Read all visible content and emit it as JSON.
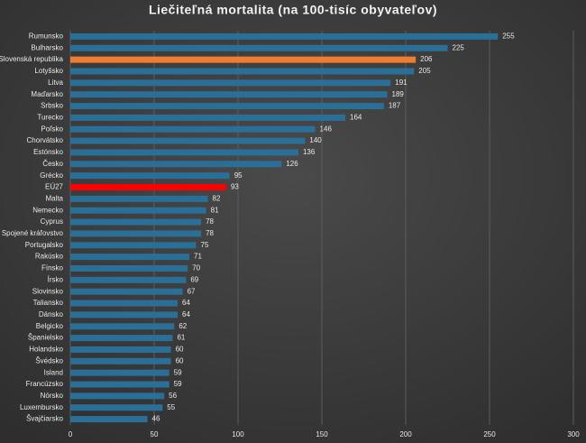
{
  "chart_data": {
    "type": "bar",
    "orientation": "horizontal",
    "title": "Liečiteľná mortalita (na 100-tisíc obyvateľov)",
    "categories": [
      "Rumunsko",
      "Bulharsko",
      "Slovenská republika",
      "Lotyšsko",
      "Litva",
      "Maďarsko",
      "Srbsko",
      "Turecko",
      "Poľsko",
      "Chorvátsko",
      "Estónsko",
      "Česko",
      "Grécko",
      "EÚ27",
      "Malta",
      "Nemecko",
      "Cyprus",
      "Spojené kráľovstvo",
      "Portugalsko",
      "Rakúsko",
      "Fínsko",
      "Írsko",
      "Slovinsko",
      "Taliansko",
      "Dánsko",
      "Belgicko",
      "Španielsko",
      "Holandsko",
      "Švédsko",
      "Island",
      "Francúzsko",
      "Nórsko",
      "Luxembursko",
      "Švajčiarsko"
    ],
    "values": [
      255,
      225,
      206,
      205,
      191,
      189,
      187,
      164,
      146,
      140,
      136,
      126,
      95,
      93,
      82,
      81,
      78,
      78,
      75,
      71,
      70,
      69,
      67,
      64,
      64,
      62,
      61,
      60,
      60,
      59,
      59,
      56,
      55,
      46
    ],
    "colors": [
      "#2a6f97",
      "#2a6f97",
      "#ed7d31",
      "#2a6f97",
      "#2a6f97",
      "#2a6f97",
      "#2a6f97",
      "#2a6f97",
      "#2a6f97",
      "#2a6f97",
      "#2a6f97",
      "#2a6f97",
      "#2a6f97",
      "#ff0000",
      "#2a6f97",
      "#2a6f97",
      "#2a6f97",
      "#2a6f97",
      "#2a6f97",
      "#2a6f97",
      "#2a6f97",
      "#2a6f97",
      "#2a6f97",
      "#2a6f97",
      "#2a6f97",
      "#2a6f97",
      "#2a6f97",
      "#2a6f97",
      "#2a6f97",
      "#2a6f97",
      "#2a6f97",
      "#2a6f97",
      "#2a6f97",
      "#2a6f97"
    ],
    "xlim": [
      0,
      300
    ],
    "xticks": [
      0,
      50,
      100,
      150,
      200,
      250,
      300
    ],
    "grid": true
  }
}
